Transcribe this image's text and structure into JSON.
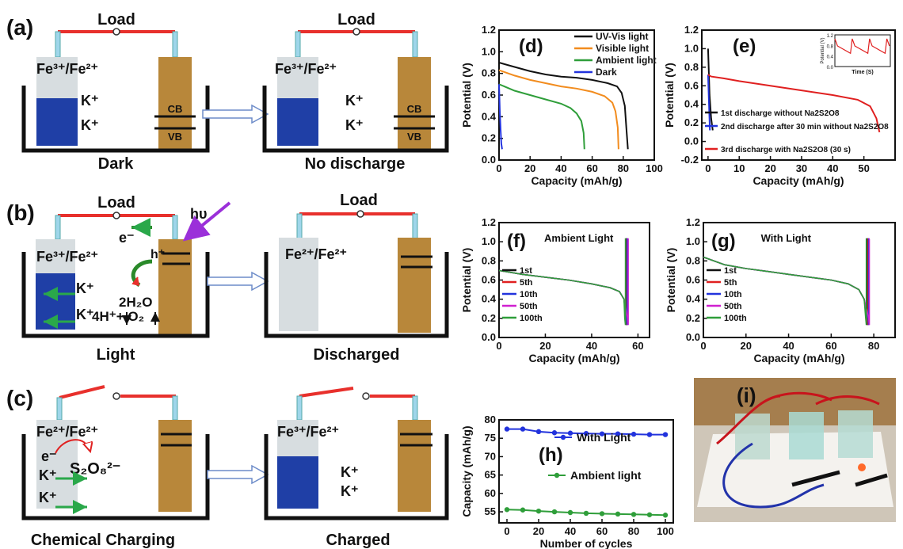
{
  "panels": {
    "a": {
      "label": "(a)",
      "left": {
        "load": "Load",
        "electrolyte": "Fe³⁺/Fe²⁺",
        "ions": [
          "K⁺",
          "K⁺"
        ],
        "cb": "CB",
        "vb": "VB",
        "caption": "Dark"
      },
      "right": {
        "load": "Load",
        "electrolyte": "Fe³⁺/Fe²⁺",
        "ions": [
          "K⁺",
          "K⁺"
        ],
        "cb": "CB",
        "vb": "VB",
        "caption": "No discharge"
      }
    },
    "b": {
      "label": "(b)",
      "left": {
        "load": "Load",
        "electron": "e⁻",
        "photon": "hυ",
        "hole": "h⁺",
        "electrolyte": "Fe³⁺/Fe²⁺",
        "ions": [
          "K⁺",
          "K⁺"
        ],
        "water": "2H₂O",
        "products": "4H⁺+ O₂",
        "caption": "Light"
      },
      "right": {
        "load": "Load",
        "electrolyte": "Fe²⁺/Fe²⁺",
        "caption": "Discharged"
      }
    },
    "c": {
      "label": "(c)",
      "left": {
        "electrolyte": "Fe²⁺/Fe²⁺",
        "electron": "e⁻",
        "oxidant": "S₂O₈²⁻",
        "ions": [
          "K⁺",
          "K⁺"
        ],
        "caption": "Chemical Charging"
      },
      "right": {
        "electrolyte": "Fe³⁺/Fe²⁺",
        "ions": [
          "K⁺",
          "K⁺"
        ],
        "caption": "Charged"
      }
    },
    "i": {
      "label": "(i)"
    }
  },
  "colors": {
    "wire": "#e8302c",
    "electrolyte_blue": "#1f3fa6",
    "photoelectrode": "#b8873a",
    "arrow_green": "#2aa84a",
    "photon": "#9b30d9"
  },
  "chart_data": [
    {
      "id": "d",
      "label": "(d)",
      "type": "line",
      "xlabel": "Capacity (mAh/g)",
      "ylabel": "Potential (V)",
      "xlim": [
        0,
        100
      ],
      "ylim": [
        0,
        1.2
      ],
      "xticks": [
        0,
        20,
        40,
        60,
        80,
        100
      ],
      "yticks": [
        0.0,
        0.2,
        0.4,
        0.6,
        0.8,
        1.0,
        1.2
      ],
      "legend_position": "top-right",
      "series": [
        {
          "name": "UV-Vis light",
          "color": "#111111",
          "x": [
            0,
            10,
            20,
            30,
            40,
            50,
            60,
            70,
            76,
            79,
            81,
            82,
            83
          ],
          "y": [
            0.9,
            0.86,
            0.82,
            0.79,
            0.77,
            0.76,
            0.74,
            0.71,
            0.68,
            0.62,
            0.5,
            0.3,
            0.1
          ]
        },
        {
          "name": "Visible light",
          "color": "#f28c1e",
          "x": [
            0,
            10,
            20,
            30,
            40,
            50,
            60,
            68,
            73,
            75,
            76.5,
            77
          ],
          "y": [
            0.83,
            0.78,
            0.74,
            0.71,
            0.68,
            0.66,
            0.63,
            0.59,
            0.53,
            0.45,
            0.3,
            0.1
          ]
        },
        {
          "name": "Ambient light",
          "color": "#2f9e3a",
          "x": [
            0,
            10,
            20,
            30,
            40,
            46,
            50,
            53,
            54.5,
            55
          ],
          "y": [
            0.7,
            0.64,
            0.6,
            0.56,
            0.52,
            0.48,
            0.43,
            0.36,
            0.25,
            0.1
          ]
        },
        {
          "name": "Dark",
          "color": "#2233dd",
          "x": [
            0,
            0.5,
            1,
            1.5,
            2
          ],
          "y": [
            0.7,
            0.45,
            0.28,
            0.15,
            0.1
          ]
        }
      ]
    },
    {
      "id": "e",
      "label": "(e)",
      "type": "line",
      "xlabel": "Capacity (mAh/g)",
      "ylabel": "Potential (V)",
      "xlim": [
        -2,
        60
      ],
      "ylim": [
        -0.2,
        1.2
      ],
      "xticks": [
        0,
        10,
        20,
        30,
        40,
        50
      ],
      "yticks": [
        -0.2,
        0.0,
        0.2,
        0.4,
        0.6,
        0.8,
        1.0,
        1.2
      ],
      "legend_position": "bottom-left",
      "series": [
        {
          "name": "1st discharge without Na2S2O8",
          "color": "#111111",
          "x": [
            0,
            0.5,
            1,
            1.5
          ],
          "y": [
            1.0,
            0.5,
            0.25,
            0.12
          ]
        },
        {
          "name": "2nd discharge after 30 min without Na2S2O8",
          "color": "#2233dd",
          "x": [
            0,
            0.3,
            0.6
          ],
          "y": [
            0.72,
            0.4,
            0.12
          ]
        },
        {
          "name": "3rd discharge with Na2S2O8 (30 s)",
          "color": "#e02020",
          "x": [
            0,
            1,
            5,
            10,
            20,
            30,
            40,
            48,
            52,
            54,
            55
          ],
          "y": [
            0.72,
            0.7,
            0.68,
            0.65,
            0.6,
            0.55,
            0.5,
            0.45,
            0.38,
            0.25,
            0.1
          ]
        }
      ],
      "inset": {
        "xlabel": "Time (S)",
        "ylabel": "Potential (V)",
        "yticks": [
          0.0,
          0.4,
          0.8,
          1.2
        ],
        "ylim": [
          0,
          1.2
        ],
        "color": "#e02020",
        "x": [
          0,
          0.15,
          0.9,
          1.0,
          1.15,
          1.9,
          2.0,
          2.15,
          2.9,
          3.0,
          3.15
        ],
        "y": [
          1.05,
          0.78,
          0.5,
          1.05,
          0.78,
          0.5,
          1.05,
          0.78,
          0.5,
          1.05,
          0.78
        ]
      }
    },
    {
      "id": "f",
      "label": "(f)",
      "type": "line",
      "title": "Ambient Light",
      "xlabel": "Capacity (mAh/g)",
      "ylabel": "Potential (V)",
      "xlim": [
        0,
        65
      ],
      "ylim": [
        0,
        1.2
      ],
      "xticks": [
        0,
        20,
        40,
        60
      ],
      "yticks": [
        0.0,
        0.2,
        0.4,
        0.6,
        0.8,
        1.0,
        1.2
      ],
      "legend_position": "bottom-left",
      "series": [
        {
          "name": "1st",
          "color": "#111111",
          "end": 55.0
        },
        {
          "name": "5th",
          "color": "#e02020",
          "end": 55.2
        },
        {
          "name": "10th",
          "color": "#2233dd",
          "end": 55.4
        },
        {
          "name": "50th",
          "color": "#d020d0",
          "end": 55.8
        },
        {
          "name": "100th",
          "color": "#2f9e3a",
          "end": 54.6
        }
      ],
      "base_x": [
        0,
        10,
        20,
        30,
        40,
        48,
        52,
        54
      ],
      "base_y": [
        0.7,
        0.66,
        0.63,
        0.6,
        0.56,
        0.52,
        0.48,
        0.4
      ]
    },
    {
      "id": "g",
      "label": "(g)",
      "type": "line",
      "title": "With Light",
      "xlabel": "Capacity (mAh/g)",
      "ylabel": "Potential (V)",
      "xlim": [
        0,
        90
      ],
      "ylim": [
        0,
        1.2
      ],
      "xticks": [
        0,
        20,
        40,
        60,
        80
      ],
      "yticks": [
        0.0,
        0.2,
        0.4,
        0.6,
        0.8,
        1.0,
        1.2
      ],
      "legend_position": "bottom-left",
      "series": [
        {
          "name": "1st",
          "color": "#111111",
          "end": 77.0
        },
        {
          "name": "5th",
          "color": "#e02020",
          "end": 77.3
        },
        {
          "name": "10th",
          "color": "#2233dd",
          "end": 77.6
        },
        {
          "name": "50th",
          "color": "#d020d0",
          "end": 77.9
        },
        {
          "name": "100th",
          "color": "#2f9e3a",
          "end": 76.5
        }
      ],
      "base_x": [
        0,
        10,
        20,
        30,
        40,
        50,
        60,
        68,
        73,
        75.5
      ],
      "base_y": [
        0.84,
        0.76,
        0.72,
        0.69,
        0.66,
        0.63,
        0.6,
        0.56,
        0.5,
        0.4
      ]
    },
    {
      "id": "h",
      "label": "(h)",
      "type": "line",
      "xlabel": "Number of cycles",
      "ylabel": "Capacity (mAh/g)",
      "xlim": [
        -5,
        105
      ],
      "ylim": [
        52,
        80
      ],
      "xticks": [
        0,
        20,
        40,
        60,
        80,
        100
      ],
      "yticks": [
        55,
        60,
        65,
        70,
        75,
        80
      ],
      "series": [
        {
          "name": "With Light",
          "color": "#2233dd",
          "x": [
            0,
            10,
            20,
            30,
            40,
            50,
            60,
            70,
            80,
            90,
            100
          ],
          "y": [
            77.5,
            77.5,
            76.8,
            76.5,
            76.4,
            76.3,
            76.2,
            76.2,
            76.1,
            76.0,
            76.0
          ]
        },
        {
          "name": "Ambient light",
          "color": "#2f9e3a",
          "x": [
            0,
            10,
            20,
            30,
            40,
            50,
            60,
            70,
            80,
            90,
            100
          ],
          "y": [
            55.6,
            55.5,
            55.2,
            55.0,
            54.8,
            54.6,
            54.5,
            54.4,
            54.3,
            54.2,
            54.1
          ]
        }
      ]
    }
  ]
}
